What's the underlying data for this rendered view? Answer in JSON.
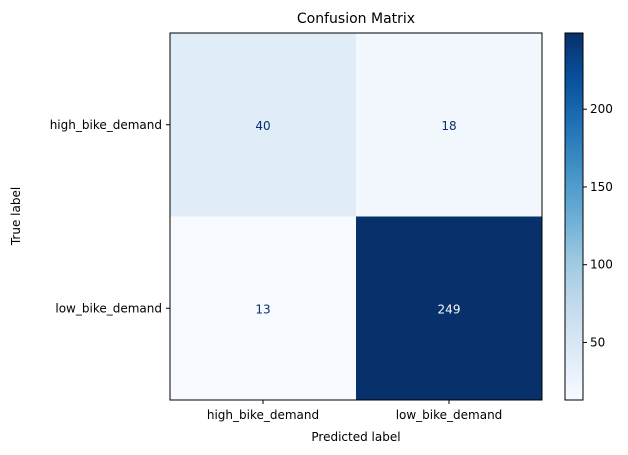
{
  "chart_data": {
    "type": "heatmap",
    "title": "Confusion Matrix",
    "xlabel": "Predicted label",
    "ylabel": "True label",
    "x_categories": [
      "high_bike_demand",
      "low_bike_demand"
    ],
    "y_categories": [
      "high_bike_demand",
      "low_bike_demand"
    ],
    "values": [
      [
        40,
        18
      ],
      [
        13,
        249
      ]
    ],
    "colormap": "Blues",
    "colorbar": {
      "range": [
        13,
        249
      ],
      "ticks": [
        50,
        100,
        150,
        200
      ]
    },
    "colors": {
      "low": "#f7fbff",
      "high": "#08306b",
      "dark_text": "#08306b",
      "light_text": "#f7fbff"
    }
  }
}
